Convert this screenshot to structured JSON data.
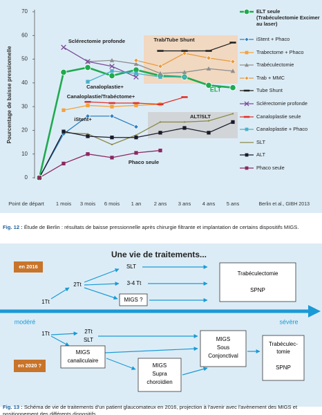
{
  "chart_data": {
    "type": "line",
    "ylabel": "Pourcentage de baisse pressionnelle",
    "categories": [
      "Point de départ",
      "1 mois",
      "3 mois",
      "6 mois",
      "1 an",
      "2 ans",
      "3 ans",
      "4 ans",
      "5 ans"
    ],
    "ylim": [
      0,
      70
    ],
    "yticks": [
      0,
      10,
      20,
      30,
      40,
      50,
      60,
      70
    ],
    "grid": false,
    "source": "Berlin et al., GIBH 2013",
    "annotations": [
      "Sclérectomie profonde",
      "Trab/Tube Shunt",
      "Canaloplastie+",
      "Canaloplastie/Trabéctome+",
      "iStent+",
      "ALT/SLT",
      "Phaco seule",
      "ELT"
    ],
    "series": [
      {
        "name": "ELT seule (Trabéculectomie Excimer au laser)",
        "color": "#1faa4f",
        "marker": "circle",
        "values": [
          0,
          44.5,
          46.5,
          43,
          45.5,
          43,
          42.5,
          39,
          38
        ]
      },
      {
        "name": "iStent + Phaco",
        "color": "#2e7fc1",
        "marker": "diamond",
        "values": [
          0,
          18.5,
          26,
          26,
          21.5,
          null,
          null,
          null,
          null
        ]
      },
      {
        "name": "Trabectome + Phaco",
        "color": "#f5a33a",
        "marker": "square",
        "values": [
          null,
          28.5,
          30.5,
          30,
          30.5,
          31,
          null,
          null,
          null
        ]
      },
      {
        "name": "Trabéculectomie",
        "color": "#8e8e8e",
        "marker": "triangle",
        "values": [
          null,
          null,
          49,
          49.5,
          48,
          44,
          44.5,
          46,
          45
        ]
      },
      {
        "name": "Trab + MMC",
        "color": "#e89a3c",
        "marker": "diamond",
        "values": [
          null,
          null,
          null,
          null,
          49.5,
          47,
          52.5,
          50.5,
          49
        ]
      },
      {
        "name": "Tube Shunt",
        "color": "#222222",
        "marker": "dash",
        "values": [
          null,
          null,
          null,
          null,
          null,
          53.5,
          53.5,
          53.5,
          57
        ]
      },
      {
        "name": "Sclérectomie profonde",
        "color": "#7a4a9a",
        "marker": "x",
        "values": [
          null,
          55,
          49,
          47,
          42.5,
          null,
          null,
          null,
          null
        ]
      },
      {
        "name": "Canaloplastie seule",
        "color": "#e0302a",
        "marker": "dash",
        "values": [
          null,
          null,
          32,
          31.5,
          31.5,
          31,
          34,
          null,
          null
        ]
      },
      {
        "name": "Canaloplastie + Phaco",
        "color": "#4ab0c8",
        "marker": "square",
        "values": [
          null,
          null,
          40.5,
          45,
          44,
          42.5,
          42.5,
          null,
          null
        ]
      },
      {
        "name": "SLT",
        "color": "#8a8a4a",
        "marker": "none",
        "values": [
          null,
          19,
          18.5,
          14,
          18,
          23.5,
          23.5,
          24,
          27
        ]
      },
      {
        "name": "ALT",
        "color": "#1a1a2a",
        "marker": "square",
        "values": [
          0,
          19.5,
          17.5,
          17,
          17,
          19,
          21,
          19,
          23.5
        ]
      },
      {
        "name": "Phaco seule",
        "color": "#8a2860",
        "marker": "square",
        "values": [
          0,
          6,
          10,
          8.5,
          10.5,
          11.5,
          null,
          null,
          null
        ]
      }
    ]
  },
  "figure12_caption": {
    "label": "Fig. 12 :",
    "text": "Étude de Berlin : résultats de baisse pressionnelle après chirurgie filtrante et implantation de certains dispositifs MIGS."
  },
  "diagram": {
    "title": "Une vie de traitements...",
    "year_2016": "en 2016",
    "year_2020": "en 2020 ?",
    "scale_low": "modéré",
    "scale_high": "sévère",
    "top": {
      "start": "1Tt",
      "step2": "2Tt",
      "slt": "SLT",
      "multi": "3-4 Tt",
      "migs": "MIGS ?",
      "surgery": [
        "Trabéculectomie",
        "SPNP"
      ]
    },
    "bottom": {
      "start": "1Tt",
      "step2": [
        "2Tt",
        "SLT"
      ],
      "migs_canal": [
        "MIGS",
        "canaliculaire"
      ],
      "migs_supra": [
        "MIGS",
        "Supra",
        "choroïdien"
      ],
      "migs_subconj": [
        "MIGS",
        "Sous",
        "Conjonctival"
      ],
      "surgery": [
        "Trabéculec-",
        "tomie",
        "SPNP"
      ]
    }
  },
  "figure13_caption": {
    "label": "Fig. 13 :",
    "text": "Schéma de vie de traitements d'un patient glaucomateux en 2016, projection à l'avenir avec l'avènement des MIGS et positionnement des différents dispositifs."
  }
}
